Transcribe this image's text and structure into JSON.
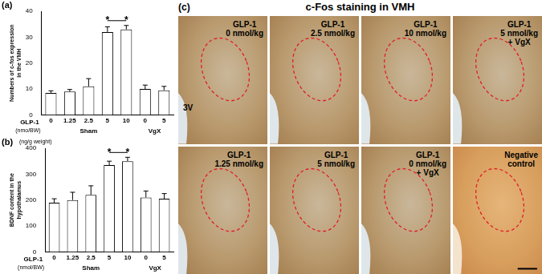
{
  "chart_data": [
    {
      "type": "bar",
      "panel_label": "(a)",
      "y_label": [
        "Numbers of c-fos expression",
        "in the VMH"
      ],
      "x_label": "GLP-1",
      "x_unit": "(nmo/BW)",
      "categories": [
        "0",
        "1.25",
        "2.5",
        "5",
        "10",
        "0",
        "5"
      ],
      "values": [
        8.5,
        9,
        11,
        32,
        33,
        10,
        9.5
      ],
      "errors": [
        0.8,
        0.8,
        3,
        2,
        1.5,
        1.5,
        1.5
      ],
      "groups": [
        {
          "name": "Sham",
          "start": 0,
          "end": 4
        },
        {
          "name": "VgX",
          "start": 5,
          "end": 6
        }
      ],
      "annotations": [
        {
          "text": "*",
          "category_index": 3
        },
        {
          "text": "*",
          "category_index": 4
        }
      ],
      "color": "#ffffff",
      "ylim": [
        0,
        40
      ],
      "yticks": [
        0,
        10,
        20,
        30,
        40
      ],
      "grid": false
    },
    {
      "type": "bar",
      "panel_label": "(b)",
      "y_label": [
        "BDNF content in the",
        "hypothalamus"
      ],
      "y_unit": "(ng/g weight)",
      "x_label": "GLP-1",
      "x_unit": "(nmol/BW)",
      "categories": [
        "0",
        "1.25",
        "2.5",
        "5",
        "10",
        "0",
        "5"
      ],
      "values": [
        190,
        200,
        220,
        335,
        350,
        210,
        205
      ],
      "errors": [
        15,
        30,
        35,
        15,
        15,
        25,
        20
      ],
      "groups": [
        {
          "name": "Sham",
          "start": 0,
          "end": 4
        },
        {
          "name": "VgX",
          "start": 5,
          "end": 6
        }
      ],
      "annotations": [
        {
          "text": "*",
          "category_index": 3
        },
        {
          "text": "*",
          "category_index": 4
        }
      ],
      "color": "#ffffff",
      "ylim": [
        0,
        400
      ],
      "yticks": [
        0,
        100,
        200,
        300,
        400
      ],
      "grid": false
    }
  ],
  "image_panel": {
    "panel_label": "(c)",
    "title": "c-Fos staining in VMH",
    "images": [
      {
        "lines": [
          "GLP-1",
          "0 nmol/kg"
        ],
        "note": "3V"
      },
      {
        "lines": [
          "GLP-1",
          "2.5 nmol/kg"
        ]
      },
      {
        "lines": [
          "GLP-1",
          "10 nmol/kg"
        ]
      },
      {
        "lines": [
          "GLP-1",
          "5 nmol/kg",
          "+ VgX"
        ]
      },
      {
        "lines": [
          "GLP-1",
          "1.25 nmol/kg"
        ]
      },
      {
        "lines": [
          "GLP-1",
          "5 nmol/kg"
        ]
      },
      {
        "lines": [
          "GLP-1",
          "0 nmol/kg",
          "+ VgX"
        ]
      },
      {
        "lines": [
          "Negative",
          "control"
        ],
        "negative": true
      }
    ]
  }
}
